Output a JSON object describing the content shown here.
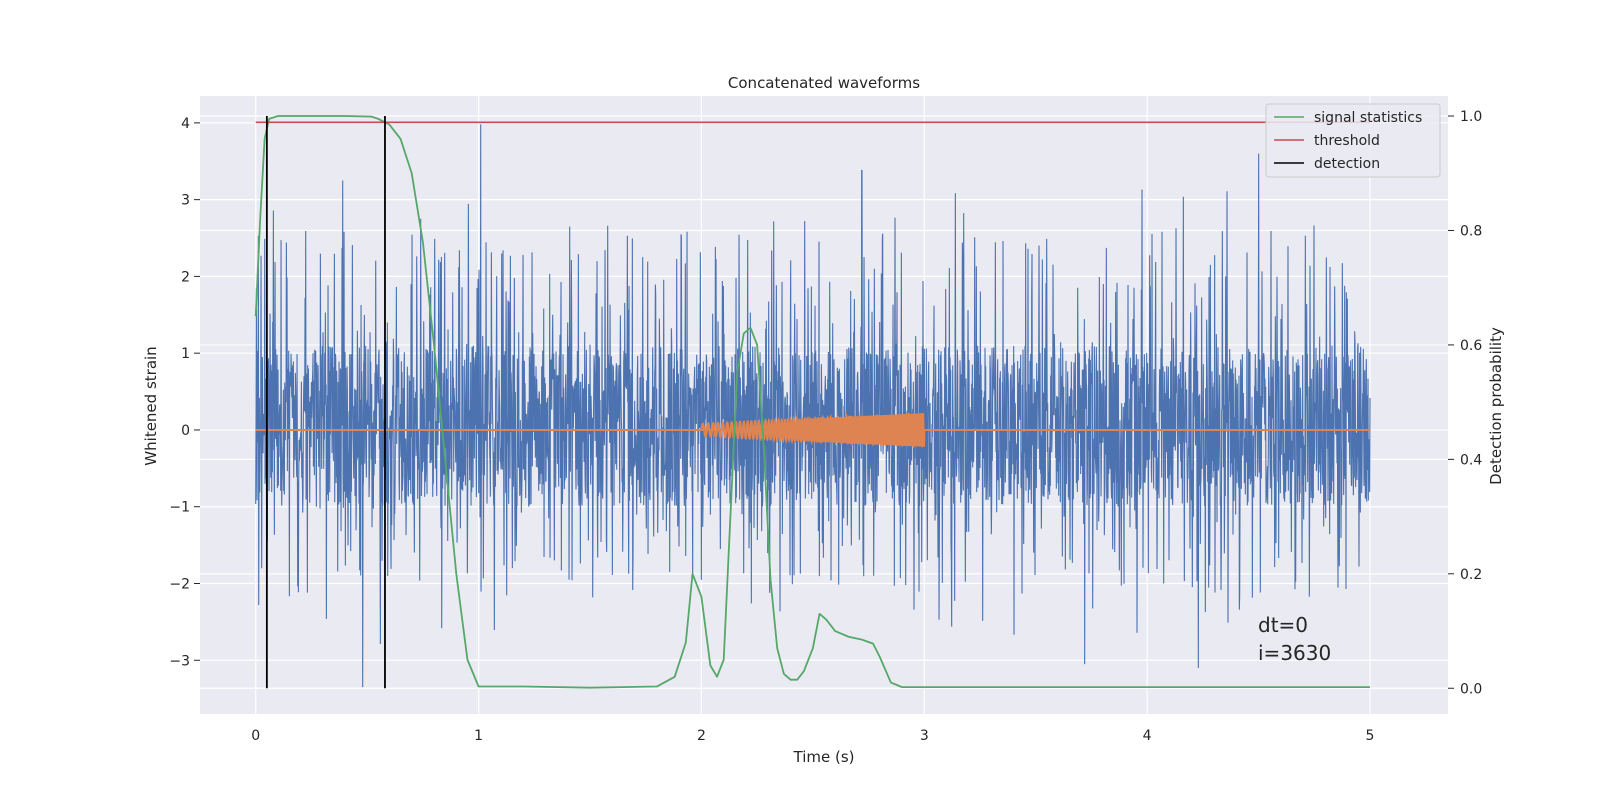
{
  "chart_data": {
    "type": "line",
    "title": "Concatenated waveforms",
    "xlabel": "Time (s)",
    "ylabel": "Whitened strain",
    "y2label": "Detection probability",
    "xlim": [
      -0.25,
      5.35
    ],
    "ylim": [
      -3.7,
      4.35
    ],
    "y2lim": [
      -0.045,
      1.035
    ],
    "x_ticks": [
      0,
      1,
      2,
      3,
      4,
      5
    ],
    "y_ticks": [
      -3,
      -2,
      -1,
      0,
      1,
      2,
      3,
      4
    ],
    "y2_ticks": [
      0.0,
      0.2,
      0.4,
      0.6,
      0.8,
      1.0
    ],
    "x_tick_labels": [
      "0",
      "1",
      "2",
      "3",
      "4",
      "5"
    ],
    "y_tick_labels": [
      "−3",
      "−2",
      "−1",
      "0",
      "1",
      "2",
      "3",
      "4"
    ],
    "y2_tick_labels": [
      "0.0",
      "0.2",
      "0.4",
      "0.6",
      "0.8",
      "1.0"
    ],
    "grid": true,
    "legend_placement": "top-right",
    "legend": [
      {
        "label": "signal statistics",
        "color": "#55a868"
      },
      {
        "label": "threshold",
        "color": "#c44e52"
      },
      {
        "label": "detection",
        "color": "#000000"
      }
    ],
    "series": [
      {
        "kind": "noise",
        "color": "#4c72b0",
        "x_range": [
          0,
          5
        ],
        "core_band": [
          -1.0,
          1.1
        ],
        "peak_range": [
          -3.35,
          3.98
        ],
        "notable_peaks": [
          {
            "x": 1.01,
            "y": 3.98
          },
          {
            "x": 0.39,
            "y": 3.25
          },
          {
            "x": 2.72,
            "y": 3.38
          },
          {
            "x": 4.5,
            "y": 3.6
          },
          {
            "x": 0.48,
            "y": -3.35
          },
          {
            "x": 4.23,
            "y": -3.1
          },
          {
            "x": 3.72,
            "y": -3.05
          }
        ]
      },
      {
        "kind": "chirp",
        "color": "#dd8452",
        "x_range": [
          2.0,
          3.0
        ],
        "amplitude_start": 0.08,
        "amplitude_end": 0.22,
        "baseline": 0
      },
      {
        "name": "signal statistics",
        "axis": "right",
        "color": "#55a868",
        "x": [
          0,
          0.02,
          0.04,
          0.06,
          0.1,
          0.2,
          0.4,
          0.52,
          0.55,
          0.6,
          0.65,
          0.7,
          0.75,
          0.8,
          0.85,
          0.9,
          0.95,
          1.0,
          1.2,
          1.5,
          1.8,
          1.88,
          1.93,
          1.96,
          2.0,
          2.04,
          2.07,
          2.1,
          2.13,
          2.16,
          2.19,
          2.22,
          2.25,
          2.28,
          2.31,
          2.34,
          2.37,
          2.4,
          2.43,
          2.46,
          2.5,
          2.53,
          2.56,
          2.6,
          2.66,
          2.72,
          2.77,
          2.8,
          2.85,
          2.9,
          3.0,
          4.0,
          5.0
        ],
        "y": [
          0.65,
          0.82,
          0.96,
          0.995,
          1.0,
          1.0,
          1.0,
          0.999,
          0.995,
          0.985,
          0.96,
          0.9,
          0.78,
          0.6,
          0.4,
          0.2,
          0.05,
          0.003,
          0.003,
          0.001,
          0.003,
          0.02,
          0.08,
          0.2,
          0.16,
          0.04,
          0.02,
          0.05,
          0.3,
          0.55,
          0.62,
          0.63,
          0.6,
          0.42,
          0.19,
          0.07,
          0.025,
          0.015,
          0.015,
          0.03,
          0.07,
          0.13,
          0.12,
          0.1,
          0.09,
          0.085,
          0.078,
          0.055,
          0.01,
          0.002,
          0.002,
          0.002,
          0.002
        ]
      },
      {
        "name": "threshold",
        "axis": "right",
        "color": "#c44e52",
        "x": [
          0,
          5
        ],
        "y": [
          0.989,
          0.989
        ]
      }
    ],
    "detections": {
      "color": "#000000",
      "x": [
        0.05,
        0.58
      ],
      "y2_from": 0.0,
      "y2_to": 1.0
    },
    "annotation": {
      "lines": [
        "dt=0",
        "i=3630"
      ],
      "x": 4.5,
      "y": -2.6
    }
  }
}
